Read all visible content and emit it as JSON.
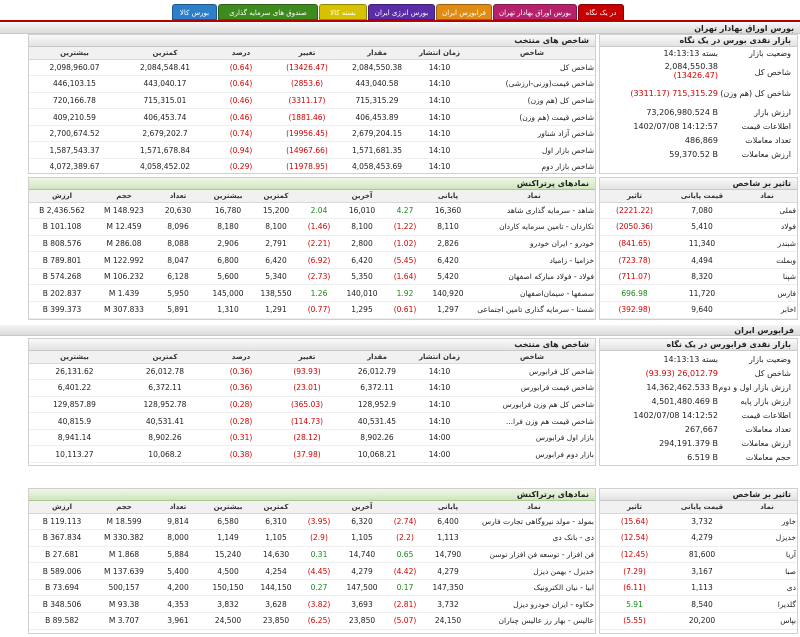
{
  "tabs": [
    {
      "label": "در یک نگاه",
      "color": "#c80000"
    },
    {
      "label": "بورس اوراق بهادار تهران",
      "color": "#b5226b"
    },
    {
      "label": "فرابورس ایران",
      "color": "#e08b12"
    },
    {
      "label": "بورس انرژی ایران",
      "color": "#5a2ca8"
    },
    {
      "label": "بسته کالا",
      "color": "#d6c200"
    },
    {
      "label": "صندوق های سرمایه گذاری",
      "color": "#3f8a1e"
    },
    {
      "label": "بورس کالا",
      "color": "#2c7fc8"
    }
  ],
  "sections": {
    "tse": "بورس اوراق بهادار تهران",
    "ifb": "فرابورس ایران"
  },
  "tse_indices": {
    "title": "شاخص های منتخب",
    "headers": [
      "شاخص",
      "زمان انتشار",
      "مقدار",
      "تغییر",
      "درصد",
      "کمترین",
      "بیشترین"
    ],
    "rows": [
      [
        "شاخص کل",
        "14:10",
        "2,084,550.38",
        "(13426.47)",
        "(0.64)",
        "2,084,548.41",
        "2,098,960.07"
      ],
      [
        "شاخص قیمت(وزنی-ارزشی)",
        "14:10",
        "443,040.58",
        "(2853.6)",
        "(0.64)",
        "443,040.17",
        "446,103.15"
      ],
      [
        "شاخص کل (هم وزن)",
        "14:10",
        "715,315.29",
        "(3311.17)",
        "(0.46)",
        "715,315.01",
        "720,166.78"
      ],
      [
        "شاخص قیمت (هم وزن)",
        "14:10",
        "406,453.89",
        "(1881.46)",
        "(0.46)",
        "406,453.74",
        "409,210.59"
      ],
      [
        "شاخص آزاد شناور",
        "14:10",
        "2,679,204.15",
        "(19956.45)",
        "(0.74)",
        "2,679,202.7",
        "2,700,674.52"
      ],
      [
        "شاخص بازار اول",
        "14:10",
        "1,571,681.35",
        "(14967.66)",
        "(0.94)",
        "1,571,678.84",
        "1,587,543.37"
      ],
      [
        "شاخص بازار دوم",
        "14:10",
        "4,058,453.69",
        "(11978.95)",
        "(0.29)",
        "4,058,452.02",
        "4,072,389.67"
      ]
    ]
  },
  "tse_summary": {
    "title": "بازار نقدی بورس در یک نگاه",
    "rows": [
      {
        "k": "وضعیت بازار",
        "v": "بسته 14:13:13"
      },
      {
        "k": "شاخص کل",
        "v": "2,084,550.38",
        "v2": "(13426.47)"
      },
      {
        "k": "شاخص کل (هم وزن)",
        "v": "(3311.17) 715,315.29"
      },
      {
        "k": "ارزش بازار",
        "v": "73,206,980.524 B"
      },
      {
        "k": "اطلاعات قیمت",
        "v": "1402/07/08 14:12:57"
      },
      {
        "k": "تعداد معاملات",
        "v": "486,869"
      },
      {
        "k": "ارزش معاملات",
        "v": "59,370.52 B"
      }
    ]
  },
  "tse_active": {
    "title": "نمادهای پرتراکنش",
    "headers": [
      "نماد",
      "پایانی",
      "",
      "آخرین",
      "",
      "کمترین",
      "بیشترین",
      "تعداد",
      "حجم",
      "ارزش"
    ],
    "rows": [
      [
        "شاهد - سرمایه گذاری شاهد",
        "16,360",
        "4.27",
        "16,010",
        "2.04",
        "15,200",
        "16,780",
        "20,630",
        "148.923 M",
        "2,436.562 B"
      ],
      [
        "تکاردان - تامین سرمایه کاردان",
        "8,110",
        "(1.22)",
        "8,100",
        "(1.46)",
        "8,100",
        "8,180",
        "8,096",
        "12.459 M",
        "101.108 B"
      ],
      [
        "خودرو - ایران خودرو",
        "2,826",
        "(1.02)",
        "2,800",
        "(2.21)",
        "2,791",
        "2,906",
        "8,088",
        "286.08 M",
        "808.576 B"
      ],
      [
        "خزامیا - زامیاد",
        "6,420",
        "(5.45)",
        "6,420",
        "(6.92)",
        "6,420",
        "6,800",
        "8,047",
        "122.992 M",
        "789.801 B"
      ],
      [
        "فولاد - فولاد مبارکه اصفهان",
        "5,420",
        "(1.64)",
        "5,350",
        "(2.73)",
        "5,340",
        "5,600",
        "6,128",
        "106.232 M",
        "574.268 B"
      ],
      [
        "سصفها - سیمان‌اصفهان",
        "140,920",
        "1.92",
        "140,010",
        "1.26",
        "138,550",
        "145,000",
        "5,950",
        "1.439 M",
        "202.837 B"
      ],
      [
        "شستا - سرمایه گذاری تامین اجتماعی",
        "1,297",
        "(0.61)",
        "1,295",
        "(0.77)",
        "1,291",
        "1,310",
        "5,891",
        "307.833 M",
        "399.373 B"
      ]
    ]
  },
  "tse_impact": {
    "title": "تاثیر بر شاخص",
    "headers": [
      "نماد",
      "قیمت پایانی",
      "تاثیر"
    ],
    "rows": [
      [
        "فملی",
        "7,080",
        "(2221.22)"
      ],
      [
        "فولاد",
        "5,410",
        "(2050.36)"
      ],
      [
        "شبندر",
        "11,340",
        "(841.65)"
      ],
      [
        "وبملت",
        "4,494",
        "(723.78)"
      ],
      [
        "شپنا",
        "8,320",
        "(711.07)"
      ],
      [
        "فارس",
        "11,720",
        "696.98"
      ],
      [
        "اخابر",
        "9,640",
        "(392.98)"
      ]
    ]
  },
  "ifb_indices": {
    "title": "شاخص های منتخب",
    "headers": [
      "شاخص",
      "زمان انتشار",
      "مقدار",
      "تغییر",
      "درصد",
      "کمترین",
      "بیشترین"
    ],
    "rows": [
      [
        "شاخص کل فرابورس",
        "14:10",
        "26,012.79",
        "(93.93)",
        "(0.36)",
        "26,012.78",
        "26,131.62"
      ],
      [
        "شاخص قیمت فرابورس",
        "14:10",
        "6,372.11",
        "(23.01)",
        "(0.36)",
        "6,372.11",
        "6,401.22"
      ],
      [
        "شاخص کل هم وزن فرابورس",
        "14:10",
        "128,952.9",
        "(365.03)",
        "(0.28)",
        "128,952.78",
        "129,857.89"
      ],
      [
        "شاخص قیمت هم وزن فرا...",
        "14:10",
        "40,531.45",
        "(114.73)",
        "(0.28)",
        "40,531.41",
        "40,815.9"
      ],
      [
        "بازار اول فرابورس",
        "14:00",
        "8,902.26",
        "(28.12)",
        "(0.31)",
        "8,902.26",
        "8,941.14"
      ],
      [
        "بازار دوم فرابورس",
        "14:00",
        "10,068.21",
        "(37.98)",
        "(0.38)",
        "10,068.2",
        "10,113.27"
      ]
    ]
  },
  "ifb_summary": {
    "title": "بازار نقدی فرابورس در یک نگاه",
    "rows": [
      {
        "k": "وضعیت بازار",
        "v": "بسته 14:13:13"
      },
      {
        "k": "شاخص کل",
        "v": "(93.93) 26,012.79"
      },
      {
        "k": "ارزش بازار اول و دوم",
        "v": "14,362,462.533 B"
      },
      {
        "k": "ارزش بازار پایه",
        "v": "4,501,480.469 B"
      },
      {
        "k": "اطلاعات قیمت",
        "v": "1402/07/08 14:12:52"
      },
      {
        "k": "تعداد معاملات",
        "v": "267,667"
      },
      {
        "k": "ارزش معاملات",
        "v": "294,191.379 B"
      },
      {
        "k": "حجم معاملات",
        "v": "6.519 B"
      }
    ]
  },
  "ifb_active": {
    "title": "نمادهای پرتراکنش",
    "headers": [
      "نماد",
      "پایانی",
      "",
      "آخرین",
      "",
      "کمترین",
      "بیشترین",
      "تعداد",
      "حجم",
      "ارزش"
    ],
    "rows": [
      [
        "بمولد - مولد نیروگاهی تجارت فارس",
        "6,400",
        "(2.74)",
        "6,320",
        "(3.95)",
        "6,310",
        "6,580",
        "9,814",
        "18.599 M",
        "119.113 B"
      ],
      [
        "دی - بانک دی",
        "1,113",
        "(2.2)",
        "1,105",
        "(2.9)",
        "1,105",
        "1,149",
        "8,000",
        "330.382 M",
        "367.834 B"
      ],
      [
        "فن افزار - توسعه فن افزار توسن",
        "14,790",
        "0.65",
        "14,740",
        "0.31",
        "14,630",
        "15,240",
        "5,884",
        "1.868 M",
        "27.681 B"
      ],
      [
        "خدیزل - بهمن دیزل",
        "4,279",
        "(4.42)",
        "4,279",
        "(4.45)",
        "4,254",
        "4,500",
        "5,400",
        "137.639 M",
        "589.006 B"
      ],
      [
        "ابیا - نیان الکترونیک",
        "147,350",
        "0.17",
        "147,500",
        "0.27",
        "144,150",
        "150,150",
        "4,200",
        "500,157",
        "73.694 B"
      ],
      [
        "خکاوه - ایران خودرو دیزل",
        "3,732",
        "(2.81)",
        "3,693",
        "(3.82)",
        "3,628",
        "3,832",
        "4,353",
        "93.38 M",
        "348.506 B"
      ],
      [
        "عالیس - بهار رز عالیس چناران",
        "24,150",
        "(5.07)",
        "23,850",
        "(6.25)",
        "23,850",
        "24,500",
        "3,961",
        "3.707 M",
        "89.582 B"
      ]
    ]
  },
  "ifb_impact": {
    "title": "تاثیر بر شاخص",
    "headers": [
      "نماد",
      "قیمت پایانی",
      "تاثیر"
    ],
    "rows": [
      [
        "خاور",
        "3,732",
        "(15.64)"
      ],
      [
        "خدیزل",
        "4,279",
        "(12.54)"
      ],
      [
        "آریا",
        "81,600",
        "(12.45)"
      ],
      [
        "صبا",
        "3,167",
        "(7.29)"
      ],
      [
        "دی",
        "1,113",
        "(6.11)"
      ],
      [
        "گلدیرا",
        "8,540",
        "5.91"
      ],
      [
        "بپاس",
        "20,200",
        "(5.55)"
      ]
    ]
  },
  "colors": {
    "negative": "#d40000",
    "positive": "#148a14",
    "tab_line": "#b70000"
  }
}
